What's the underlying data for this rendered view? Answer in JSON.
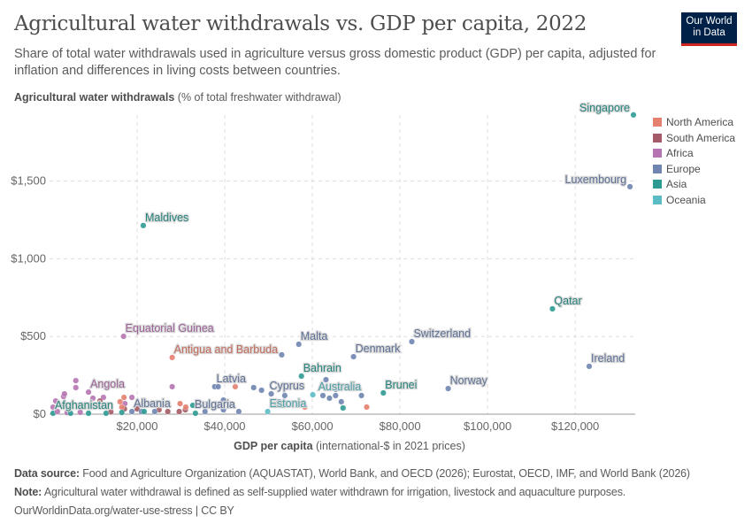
{
  "title": "Agricultural water withdrawals vs. GDP per capita, 2022",
  "subtitle": "Share of total water withdrawals used in agriculture versus gross domestic product (GDP) per capita, adjusted for inflation and differences in living costs between countries.",
  "logo": {
    "line1": "Our World",
    "line2": "in Data"
  },
  "footer": {
    "source_label": "Data source:",
    "source": "Food and Agriculture Organization (AQUASTAT), World Bank, and OECD (2026); Eurostat, OECD, IMF, and World Bank (2026)",
    "note_label": "Note:",
    "note": "Agricultural water withdrawal is defined as self-supplied water withdrawn for irrigation, livestock and aquaculture purposes.",
    "url": "OurWorldinData.org/water-use-stress | CC BY"
  },
  "chart_data": {
    "type": "scatter",
    "xlabel_bold": "GDP per capita",
    "xlabel_rest": "(international-$ in 2021 prices)",
    "ylabel_bold": "Agricultural water withdrawals",
    "ylabel_rest": "(% of total freshwater withdrawal)",
    "xlim": [
      0,
      133700
    ],
    "ylim": [
      0,
      1925
    ],
    "xticks": [
      {
        "v": 20000,
        "label": "$20,000"
      },
      {
        "v": 40000,
        "label": "$40,000"
      },
      {
        "v": 60000,
        "label": "$60,000"
      },
      {
        "v": 80000,
        "label": "$80,000"
      },
      {
        "v": 100000,
        "label": "$100,000"
      },
      {
        "v": 120000,
        "label": "$120,000"
      }
    ],
    "yticks": [
      {
        "v": 0,
        "label": "$0"
      },
      {
        "v": 500,
        "label": "$500"
      },
      {
        "v": 1000,
        "label": "$1,000"
      },
      {
        "v": 1500,
        "label": "$1,500"
      }
    ],
    "grid": true,
    "legend_position": "right",
    "regions": [
      {
        "name": "North America",
        "color": "#e5806f"
      },
      {
        "name": "South America",
        "color": "#a45a67"
      },
      {
        "name": "Africa",
        "color": "#b675b2"
      },
      {
        "name": "Europe",
        "color": "#6f85b0"
      },
      {
        "name": "Asia",
        "color": "#2e9b93"
      },
      {
        "name": "Oceania",
        "color": "#5bbcc6"
      }
    ],
    "points": [
      {
        "r": 4,
        "x": 133300,
        "y": 1926,
        "label": "Singapore"
      },
      {
        "r": 3,
        "x": 132500,
        "y": 1464,
        "label": "Luxembourg"
      },
      {
        "r": 4,
        "x": 21400,
        "y": 1214,
        "label": "Maldives"
      },
      {
        "r": 4,
        "x": 114800,
        "y": 678,
        "label": "Qatar"
      },
      {
        "r": 2,
        "x": 16900,
        "y": 501,
        "label": "Equatorial Guinea"
      },
      {
        "r": 0,
        "x": 28000,
        "y": 365,
        "label": "Antigua and Barbuda"
      },
      {
        "r": 3,
        "x": 56900,
        "y": 450,
        "label": "Malta"
      },
      {
        "r": 3,
        "x": 53000,
        "y": 382
      },
      {
        "r": 3,
        "x": 69400,
        "y": 370,
        "label": "Denmark"
      },
      {
        "r": 3,
        "x": 82700,
        "y": 467,
        "label": "Switzerland"
      },
      {
        "r": 3,
        "x": 123200,
        "y": 308,
        "label": "Ireland"
      },
      {
        "r": 3,
        "x": 91000,
        "y": 165,
        "label": "Norway"
      },
      {
        "r": 4,
        "x": 76200,
        "y": 137,
        "label": "Brunei"
      },
      {
        "r": 4,
        "x": 57500,
        "y": 245,
        "label": "Bahrain"
      },
      {
        "r": 5,
        "x": 60100,
        "y": 125,
        "label": "Australia"
      },
      {
        "r": 3,
        "x": 37700,
        "y": 177,
        "label": "Latvia"
      },
      {
        "r": 3,
        "x": 38500,
        "y": 177
      },
      {
        "r": 3,
        "x": 50600,
        "y": 131,
        "label": "Cyprus"
      },
      {
        "r": 5,
        "x": 49800,
        "y": 17,
        "label": "Estonia"
      },
      {
        "r": 3,
        "x": 43200,
        "y": 17,
        "label": "Bulgaria"
      },
      {
        "r": 3,
        "x": 18800,
        "y": 17,
        "label": "Albania"
      },
      {
        "r": 4,
        "x": 800,
        "y": 6,
        "label": "Afghanistan"
      },
      {
        "r": 2,
        "x": 8900,
        "y": 142,
        "label": "Angola"
      },
      {
        "r": 2,
        "x": 1400,
        "y": 85
      },
      {
        "r": 2,
        "x": 3200,
        "y": 114
      },
      {
        "r": 2,
        "x": 3400,
        "y": 131
      },
      {
        "r": 2,
        "x": 6000,
        "y": 216
      },
      {
        "r": 2,
        "x": 6000,
        "y": 171
      },
      {
        "r": 2,
        "x": 9900,
        "y": 103
      },
      {
        "r": 2,
        "x": 12300,
        "y": 108
      },
      {
        "r": 2,
        "x": 18800,
        "y": 108
      },
      {
        "r": 2,
        "x": 17200,
        "y": 68
      },
      {
        "r": 2,
        "x": 28000,
        "y": 177
      },
      {
        "r": 2,
        "x": 800,
        "y": 45
      },
      {
        "r": 2,
        "x": 1800,
        "y": 17
      },
      {
        "r": 2,
        "x": 4000,
        "y": 10
      },
      {
        "r": 2,
        "x": 7000,
        "y": 12
      },
      {
        "r": 1,
        "x": 11500,
        "y": 85
      },
      {
        "r": 1,
        "x": 27000,
        "y": 17
      },
      {
        "r": 1,
        "x": 29600,
        "y": 17
      },
      {
        "r": 1,
        "x": 31000,
        "y": 28
      },
      {
        "r": 1,
        "x": 25000,
        "y": 28
      },
      {
        "r": 1,
        "x": 17100,
        "y": 34
      },
      {
        "r": 1,
        "x": 20000,
        "y": 34
      },
      {
        "r": 1,
        "x": 14000,
        "y": 15
      },
      {
        "r": 0,
        "x": 17000,
        "y": 108
      },
      {
        "r": 0,
        "x": 16100,
        "y": 80
      },
      {
        "r": 0,
        "x": 42400,
        "y": 177
      },
      {
        "r": 0,
        "x": 58300,
        "y": 46
      },
      {
        "r": 0,
        "x": 29800,
        "y": 68
      },
      {
        "r": 0,
        "x": 31100,
        "y": 46
      },
      {
        "r": 0,
        "x": 72400,
        "y": 46
      },
      {
        "r": 0,
        "x": 16500,
        "y": 45
      },
      {
        "r": 3,
        "x": 39700,
        "y": 91
      },
      {
        "r": 3,
        "x": 46600,
        "y": 171
      },
      {
        "r": 3,
        "x": 48400,
        "y": 154
      },
      {
        "r": 3,
        "x": 52400,
        "y": 80
      },
      {
        "r": 3,
        "x": 53700,
        "y": 120
      },
      {
        "r": 3,
        "x": 63100,
        "y": 222
      },
      {
        "r": 3,
        "x": 62400,
        "y": 120
      },
      {
        "r": 3,
        "x": 63900,
        "y": 103
      },
      {
        "r": 3,
        "x": 65300,
        "y": 120
      },
      {
        "r": 3,
        "x": 66600,
        "y": 80
      },
      {
        "r": 3,
        "x": 65300,
        "y": 160
      },
      {
        "r": 3,
        "x": 71200,
        "y": 120
      },
      {
        "r": 3,
        "x": 24000,
        "y": 17
      },
      {
        "r": 3,
        "x": 21000,
        "y": 17
      },
      {
        "r": 3,
        "x": 35500,
        "y": 17
      },
      {
        "r": 3,
        "x": 39700,
        "y": 28
      },
      {
        "r": 4,
        "x": 53200,
        "y": 57
      },
      {
        "r": 4,
        "x": 67000,
        "y": 40
      },
      {
        "r": 4,
        "x": 32700,
        "y": 57
      },
      {
        "r": 4,
        "x": 4800,
        "y": 6
      },
      {
        "r": 4,
        "x": 8900,
        "y": 6
      },
      {
        "r": 4,
        "x": 12900,
        "y": 6
      },
      {
        "r": 4,
        "x": 16500,
        "y": 11
      },
      {
        "r": 4,
        "x": 21600,
        "y": 17
      },
      {
        "r": 4,
        "x": 33300,
        "y": 6
      },
      {
        "r": 4,
        "x": 51800,
        "y": 57
      }
    ]
  }
}
